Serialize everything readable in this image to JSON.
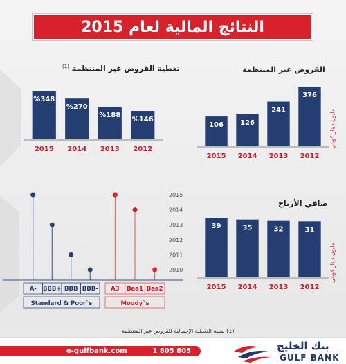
{
  "header": {
    "title": "النتائج المالية لعام 2015"
  },
  "colors": {
    "navy": "#243e72",
    "red": "#d8212a",
    "blue_line": "#3a4f84",
    "red_line": "#e0574d"
  },
  "chart_data": [
    {
      "type": "bar",
      "title": "القروض غير المنتظمة",
      "ylabel": "مليون دينار كويتي",
      "categories": [
        "2015",
        "2014",
        "2013",
        "2012"
      ],
      "values": [
        106,
        126,
        241,
        376
      ],
      "labels": [
        "106",
        "126",
        "241",
        "376"
      ],
      "ylim": [
        0,
        376
      ]
    },
    {
      "type": "bar",
      "title": "تغطية القروض غير المنتظمة",
      "title_marker": "(1)",
      "categories": [
        "2015",
        "2014",
        "2013",
        "2012"
      ],
      "values": [
        348,
        270,
        188,
        146
      ],
      "labels": [
        "%348",
        "%270",
        "%188",
        "%146"
      ],
      "ylim": [
        0,
        348
      ]
    },
    {
      "type": "bar",
      "title": "صافي الأرباح",
      "ylabel": "مليون دينار كويتي",
      "categories": [
        "2015",
        "2014",
        "2013",
        "2012"
      ],
      "values": [
        39,
        35,
        32,
        31
      ],
      "labels": [
        "39",
        "35",
        "32",
        "31"
      ],
      "ylim": [
        0,
        39
      ]
    },
    {
      "type": "scatter",
      "ylabel_ticks": [
        "2015",
        "2014",
        "2013",
        "2012",
        "2011",
        "2010"
      ],
      "y_range": [
        2010,
        2015
      ],
      "groups": [
        {
          "name": "Standard & Poor`s",
          "ratings": [
            "A-",
            "BBB+",
            "BBB",
            "BBB-"
          ],
          "points": [
            {
              "rating": "A-",
              "year": 2015
            },
            {
              "rating": "BBB+",
              "year": 2013
            },
            {
              "rating": "BBB",
              "year": 2011
            },
            {
              "rating": "BBB-",
              "year": 2010
            }
          ]
        },
        {
          "name": "Moody`s",
          "ratings": [
            "A3",
            "Baa1",
            "Baa2"
          ],
          "points": [
            {
              "rating": "A3",
              "year": 2015
            },
            {
              "rating": "Baa1",
              "year": 2014
            },
            {
              "rating": "Baa2",
              "year": 2010
            }
          ]
        }
      ]
    }
  ],
  "footer": {
    "footnote": "(1) نسبة التغطية الإجمالية للقروض غير المنتظمة",
    "website": "e-gulfbank.com",
    "phone": "1 805 805",
    "logo_ar": "بنك الخليج",
    "logo_en": "GULF BANK"
  }
}
